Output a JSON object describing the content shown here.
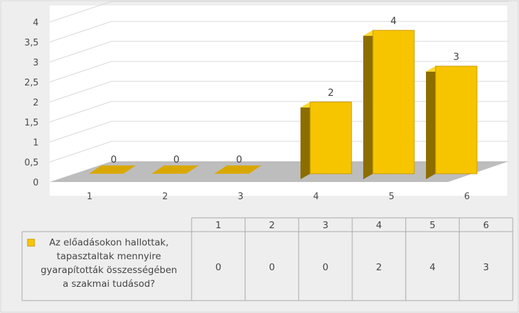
{
  "chart_data": {
    "type": "bar",
    "categories": [
      "1",
      "2",
      "3",
      "4",
      "5",
      "6"
    ],
    "series": [
      {
        "name": "Az előadásokon hallottak, tapasztaltak mennyire gyarapították összességében a szakmai tudásod?",
        "values": [
          0,
          0,
          0,
          2,
          4,
          3
        ]
      }
    ],
    "y_ticks": [
      "0",
      "0,5",
      "1",
      "1,5",
      "2",
      "2,5",
      "3",
      "3,5",
      "4"
    ],
    "ylim": [
      0,
      4
    ],
    "grid": true,
    "data_labels": true,
    "data_table": true,
    "legend": "in data table",
    "colors": {
      "bar_front": "#F7C500",
      "bar_side": "#8C6E00",
      "bar_top": "#FFD92E",
      "floor": "#BDBDBD",
      "frame_bg": "#EEEEEE",
      "plot_bg": "#FFFFFF",
      "grid": "#D9D9D9",
      "legend_key": "#F7C500"
    },
    "legend_lines": [
      "Az előadásokon hallottak,",
      "tapasztaltak mennyire",
      "gyarapították összességében",
      "a szakmai tudásod?"
    ]
  }
}
